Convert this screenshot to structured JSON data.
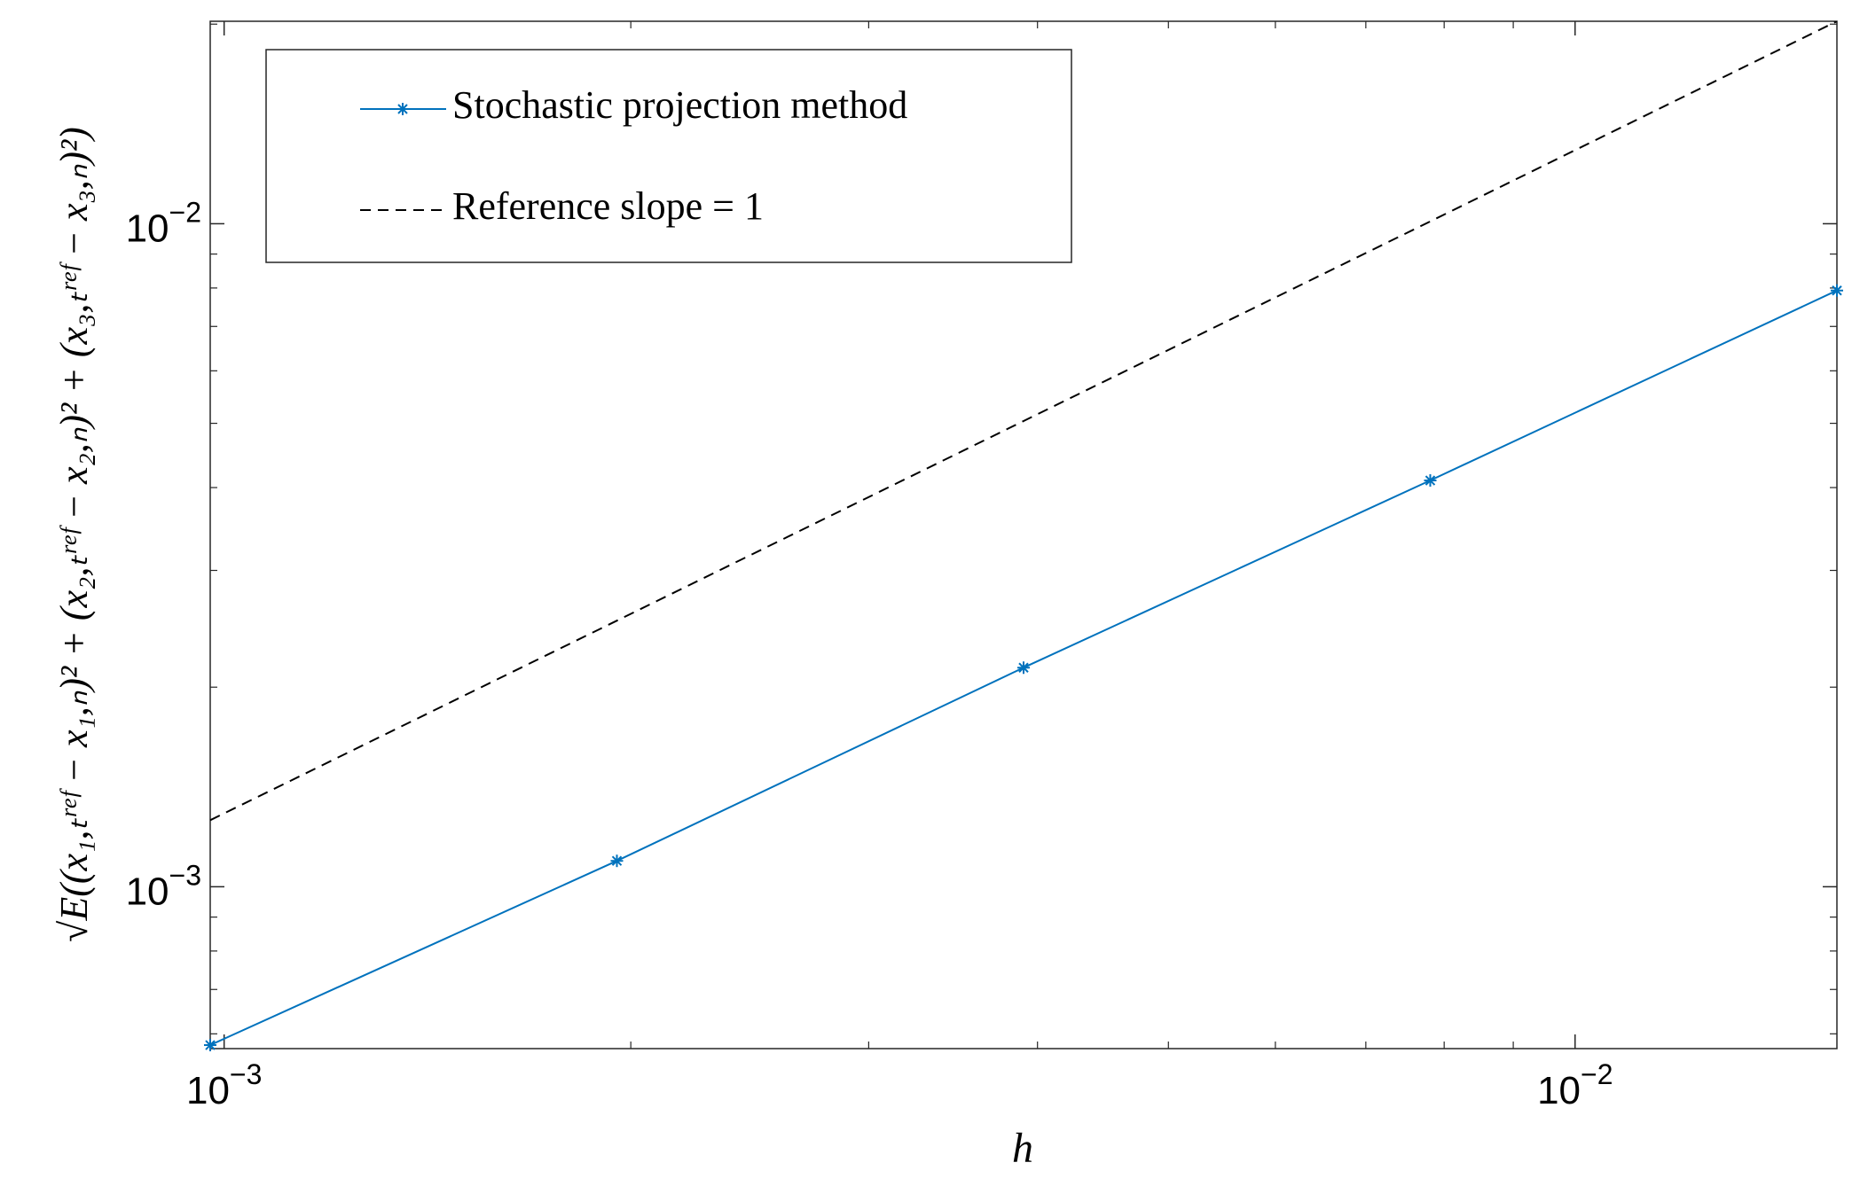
{
  "chart_data": {
    "type": "line",
    "xlabel": "h",
    "ylabel": "√E((x₁,ₜʳᵉᶠ − x₁,ₙ)² + (x₂,ₜʳᵉᶠ − x₂,ₙ)² + (x₃,ₜʳᵉᶠ − x₃,ₙ)²)",
    "x": [
      0.0009765625,
      0.001953125,
      0.00390625,
      0.0078125,
      0.015625
    ],
    "series": [
      {
        "name": "Stochastic projection method",
        "color": "#0072bd",
        "style": "solid-star",
        "values": [
          0.000577,
          0.001094,
          0.00214,
          0.0041,
          0.00793
        ]
      },
      {
        "name": "Reference slope = 1",
        "color": "#000000",
        "style": "dashed",
        "values": [
          0.00126,
          0.00252,
          0.00504,
          0.01008,
          0.0202
        ]
      }
    ],
    "xscale": "log",
    "yscale": "log",
    "xlim": [
      0.0009765625,
      0.015625
    ],
    "ylim": [
      0.00057,
      0.0202
    ],
    "xticks": [
      {
        "value": 0.001,
        "label": "10−3"
      },
      {
        "value": 0.01,
        "label": "10−2"
      }
    ],
    "yticks": [
      {
        "value": 0.001,
        "label": "10−3"
      },
      {
        "value": 0.01,
        "label": "10−2"
      }
    ],
    "xminorticks": [
      0.002,
      0.003,
      0.004,
      0.005,
      0.006,
      0.007,
      0.008,
      0.009
    ],
    "yminorticks": [
      0.0006,
      0.0007,
      0.0008,
      0.0009,
      0.002,
      0.003,
      0.004,
      0.005,
      0.006,
      0.007,
      0.008,
      0.009,
      0.02
    ],
    "legend": "upper left",
    "grid": false
  }
}
